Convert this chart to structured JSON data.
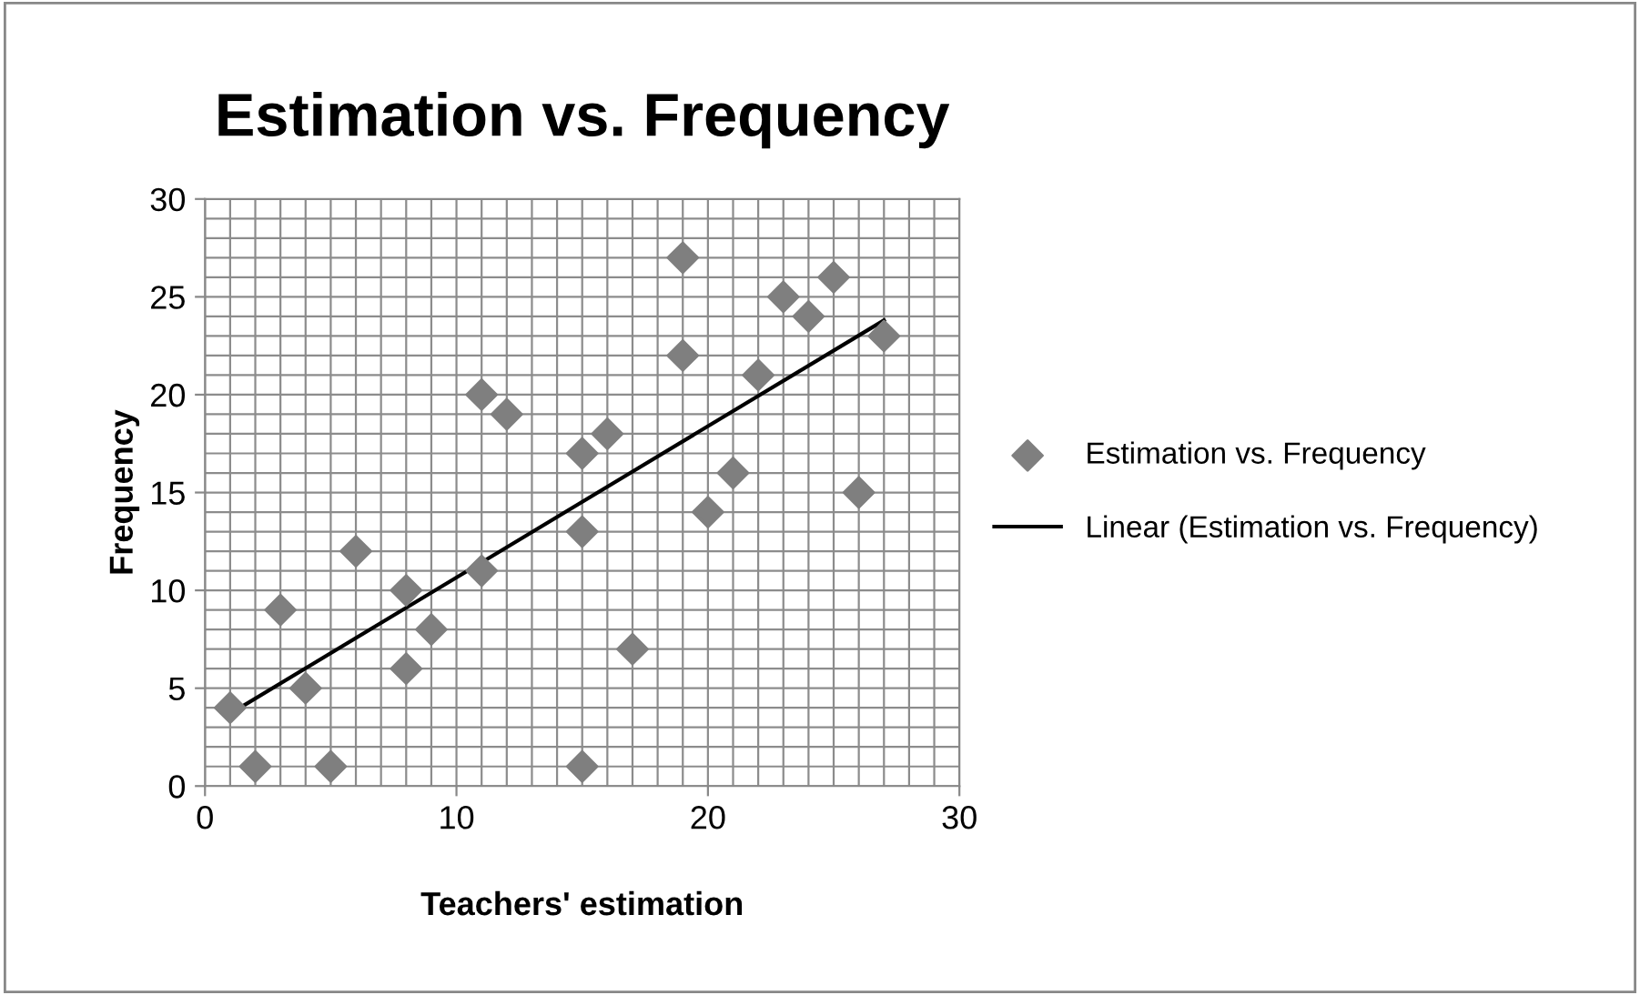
{
  "chart_data": {
    "type": "scatter",
    "title": "Estimation vs. Frequency",
    "xlabel": "Teachers' estimation",
    "ylabel": "Frequency",
    "xlim": [
      0,
      30
    ],
    "ylim": [
      0,
      30
    ],
    "xticks": [
      0,
      10,
      20,
      30
    ],
    "yticks": [
      0,
      5,
      10,
      15,
      20,
      25,
      30
    ],
    "grid": true,
    "legend": "right",
    "marker": "diamond",
    "series": [
      {
        "name": "Estimation vs. Frequency",
        "color": "#7f7f7f",
        "x": [
          1,
          2,
          3,
          4,
          5,
          6,
          8,
          8,
          9,
          11,
          11,
          12,
          15,
          15,
          15,
          16,
          17,
          19,
          19,
          20,
          21,
          22,
          23,
          24,
          25,
          26,
          27
        ],
        "values": [
          4,
          1,
          9,
          5,
          1,
          12,
          10,
          6,
          8,
          20,
          11,
          19,
          17,
          13,
          1,
          18,
          7,
          27,
          22,
          14,
          16,
          21,
          25,
          24,
          26,
          15,
          23
        ]
      },
      {
        "name": "Linear (Estimation vs. Frequency)",
        "type": "line",
        "marker": "none",
        "color": "#000000",
        "x": [
          1,
          27
        ],
        "values": [
          3.7,
          23.8
        ]
      }
    ]
  }
}
